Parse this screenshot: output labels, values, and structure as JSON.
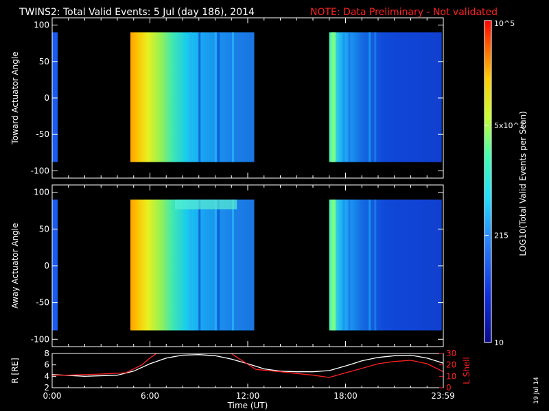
{
  "title": {
    "main": "TWINS2: Total Valid Events:  5 Jul (day 186), 2014",
    "note": "NOTE: Data Preliminary - Not validated"
  },
  "footer_date": "19 Jul 14",
  "colorbar": {
    "label": "LOG10(Total Valid Events per Scan)",
    "ticks": [
      "10",
      "215",
      "5x10^3",
      "10^5"
    ],
    "tick_values": [
      10,
      215,
      5000,
      100000
    ]
  },
  "colors": {
    "note": "#ff2020",
    "lshell": "#ff2020",
    "r": "#ffffff",
    "background": "#000000"
  },
  "chart_data": [
    {
      "type": "heatmap",
      "panel": "toward",
      "ylabel": "Toward Actuator Angle",
      "ylim": [
        -110,
        110
      ],
      "yticks": [
        "100",
        "50",
        "0",
        "-50",
        "-100"
      ],
      "xlim": [
        0,
        24
      ],
      "data_segments": [
        {
          "start": 0.0,
          "end": 0.1,
          "angle_range": [
            -88,
            90
          ]
        },
        {
          "start": 4.8,
          "end": 12.4,
          "angle_range": [
            -88,
            90
          ]
        },
        {
          "start": 17.0,
          "end": 23.9,
          "angle_range": [
            -88,
            90
          ]
        }
      ]
    },
    {
      "type": "heatmap",
      "panel": "away",
      "ylabel": "Away Actuator Angle",
      "ylim": [
        -110,
        110
      ],
      "yticks": [
        "100",
        "50",
        "0",
        "-50",
        "-100"
      ],
      "xlim": [
        0,
        24
      ],
      "data_segments": [
        {
          "start": 0.0,
          "end": 0.1,
          "angle_range": [
            -88,
            90
          ]
        },
        {
          "start": 4.8,
          "end": 12.4,
          "angle_range": [
            -88,
            90
          ]
        },
        {
          "start": 17.0,
          "end": 23.9,
          "angle_range": [
            -88,
            90
          ]
        }
      ]
    },
    {
      "type": "line",
      "panel": "orbit",
      "xlabel": "Time (UT)",
      "xlim": [
        0,
        24
      ],
      "xticks": [
        "0:00",
        "6:00",
        "12:00",
        "18:00",
        "23:59"
      ],
      "xtick_values": [
        0,
        6,
        12,
        18,
        23.98
      ],
      "ylabel_left": "R [RE]",
      "ylim_left": [
        2,
        8
      ],
      "yticks_left": [
        "8",
        "6",
        "4",
        "2"
      ],
      "ylabel_right": "L Shell",
      "ylim_right": [
        0,
        30
      ],
      "yticks_right": [
        "30",
        "20",
        "10",
        "0"
      ],
      "series": [
        {
          "name": "R [RE]",
          "axis": "left",
          "x": [
            0,
            2,
            4,
            5,
            6,
            7,
            8,
            9,
            10,
            11,
            12,
            13,
            14,
            15,
            16,
            17,
            18,
            19,
            20,
            21,
            22,
            23,
            24
          ],
          "y": [
            4.3,
            4.0,
            4.2,
            4.9,
            6.2,
            7.2,
            7.7,
            7.8,
            7.6,
            7.0,
            6.2,
            5.3,
            4.9,
            4.8,
            4.8,
            5.0,
            5.8,
            6.7,
            7.3,
            7.6,
            7.7,
            7.2,
            6.3
          ]
        },
        {
          "name": "L Shell",
          "axis": "right",
          "x": [
            0,
            1,
            3,
            4.5,
            5.5,
            6.0,
            6.6,
            10.8,
            11.4,
            12.5,
            14.0,
            16.0,
            17.0,
            18.0,
            19.0,
            20.0,
            21.0,
            22.0,
            23.0,
            24.0
          ],
          "y": [
            11,
            11,
            12,
            13,
            20,
            26,
            32,
            32,
            26,
            16,
            14,
            11,
            9,
            13,
            17,
            21,
            23,
            24,
            21,
            14
          ]
        }
      ]
    }
  ]
}
